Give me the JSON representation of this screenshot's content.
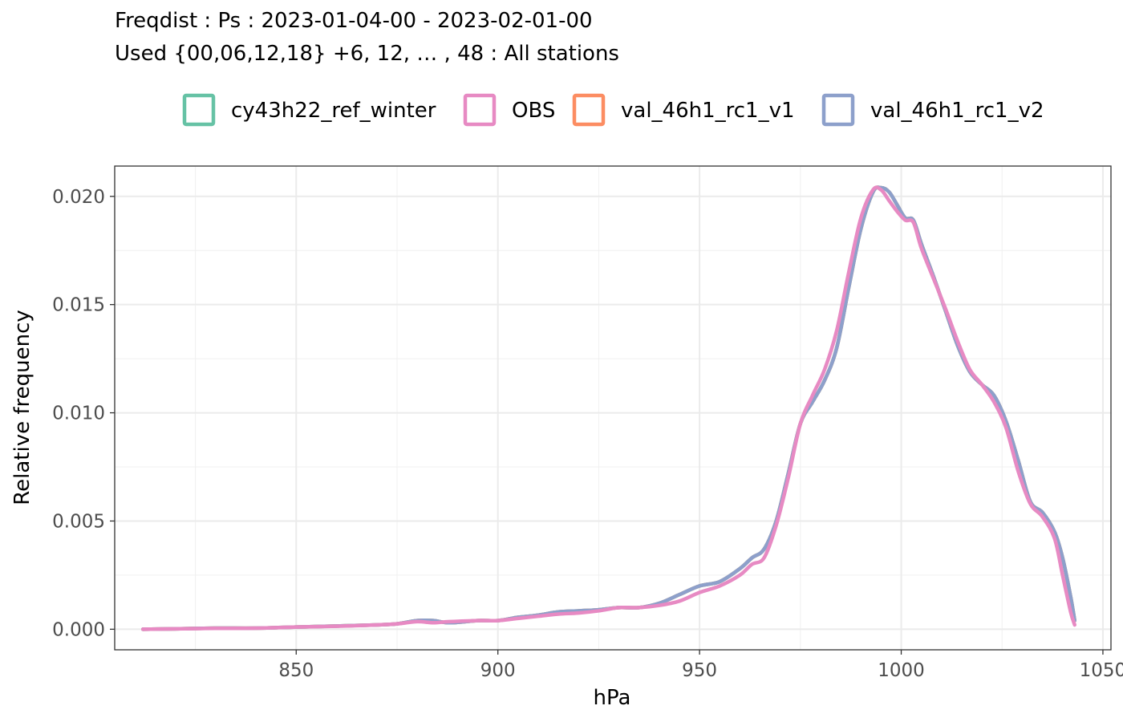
{
  "chart_data": {
    "type": "line",
    "title": "Freqdist : Ps : 2023-01-04-00 - 2023-02-01-00",
    "subtitle": "Used {00,06,12,18} +6, 12, … , 48 : All stations",
    "xlabel": "hPa",
    "ylabel": "Relative frequency",
    "xlim": [
      805,
      1052
    ],
    "ylim": [
      -0.00095,
      0.0214
    ],
    "x_ticks": [
      850,
      900,
      950,
      1000,
      1050
    ],
    "x_tick_labels": [
      "850",
      "900",
      "950",
      "1000",
      "1050"
    ],
    "y_ticks": [
      0.0,
      0.005,
      0.01,
      0.015,
      0.02
    ],
    "y_tick_labels": [
      "0.000",
      "0.005",
      "0.010",
      "0.015",
      "0.020"
    ],
    "grid": true,
    "legend_position": "top",
    "series": [
      {
        "name": "cy43h22_ref_winter",
        "color": "#66c2a5",
        "x": [
          812,
          820,
          830,
          840,
          850,
          860,
          870,
          875,
          880,
          884,
          888,
          895,
          900,
          905,
          910,
          915,
          920,
          925,
          930,
          935,
          940,
          945,
          950,
          955,
          960,
          963,
          966,
          969,
          972,
          975,
          978,
          981,
          984,
          987,
          990,
          993,
          995,
          997,
          999,
          1001,
          1003,
          1005,
          1008,
          1011,
          1014,
          1017,
          1020,
          1023,
          1026,
          1029,
          1032,
          1035,
          1038,
          1040,
          1042,
          1043
        ],
        "values": [
          0.0,
          2e-05,
          5e-05,
          5e-05,
          0.0001,
          0.00015,
          0.0002,
          0.00025,
          0.0004,
          0.0004,
          0.0003,
          0.0004,
          0.0004,
          0.00055,
          0.00065,
          0.0008,
          0.00085,
          0.0009,
          0.001,
          0.001,
          0.0012,
          0.0016,
          0.002,
          0.0022,
          0.0028,
          0.0033,
          0.0037,
          0.005,
          0.0072,
          0.0095,
          0.0105,
          0.0115,
          0.013,
          0.0158,
          0.0185,
          0.0202,
          0.0204,
          0.0202,
          0.0196,
          0.019,
          0.0189,
          0.0178,
          0.0163,
          0.0147,
          0.0131,
          0.0119,
          0.0113,
          0.0108,
          0.0096,
          0.0078,
          0.0059,
          0.0054,
          0.0045,
          0.0033,
          0.0015,
          0.0004
        ]
      },
      {
        "name": "OBS",
        "color": "#e78ac3",
        "x": [
          812,
          820,
          830,
          840,
          850,
          860,
          870,
          875,
          880,
          884,
          888,
          895,
          900,
          905,
          910,
          915,
          920,
          925,
          930,
          935,
          940,
          945,
          950,
          955,
          960,
          963,
          966,
          969,
          972,
          975,
          978,
          981,
          984,
          987,
          990,
          993,
          995,
          997,
          999,
          1001,
          1003,
          1005,
          1008,
          1011,
          1014,
          1017,
          1020,
          1023,
          1026,
          1029,
          1032,
          1035,
          1038,
          1040,
          1042,
          1043
        ],
        "values": [
          0.0,
          2e-05,
          4e-05,
          5e-05,
          0.0001,
          0.00014,
          0.0002,
          0.00025,
          0.00035,
          0.0003,
          0.00035,
          0.0004,
          0.0004,
          0.0005,
          0.0006,
          0.0007,
          0.00075,
          0.00085,
          0.001,
          0.001,
          0.0011,
          0.0013,
          0.0017,
          0.002,
          0.0025,
          0.003,
          0.0033,
          0.0048,
          0.007,
          0.0095,
          0.0108,
          0.012,
          0.0138,
          0.0165,
          0.019,
          0.0203,
          0.0203,
          0.0198,
          0.0193,
          0.0189,
          0.0188,
          0.0176,
          0.0162,
          0.0148,
          0.0133,
          0.012,
          0.0113,
          0.0105,
          0.0093,
          0.0073,
          0.0058,
          0.0052,
          0.0042,
          0.0025,
          0.0008,
          0.0002
        ]
      },
      {
        "name": "val_46h1_rc1_v1",
        "color": "#fc8d62",
        "x": [
          812,
          820,
          830,
          840,
          850,
          860,
          870,
          875,
          880,
          884,
          888,
          895,
          900,
          905,
          910,
          915,
          920,
          925,
          930,
          935,
          940,
          945,
          950,
          955,
          960,
          963,
          966,
          969,
          972,
          975,
          978,
          981,
          984,
          987,
          990,
          993,
          995,
          997,
          999,
          1001,
          1003,
          1005,
          1008,
          1011,
          1014,
          1017,
          1020,
          1023,
          1026,
          1029,
          1032,
          1035,
          1038,
          1040,
          1042,
          1043
        ],
        "values": [
          0.0,
          2e-05,
          5e-05,
          5e-05,
          0.0001,
          0.00015,
          0.0002,
          0.00025,
          0.0004,
          0.0004,
          0.0003,
          0.0004,
          0.0004,
          0.00055,
          0.00065,
          0.0008,
          0.00085,
          0.0009,
          0.001,
          0.001,
          0.0012,
          0.0016,
          0.002,
          0.0022,
          0.0028,
          0.0033,
          0.0037,
          0.005,
          0.0072,
          0.0095,
          0.0105,
          0.0115,
          0.013,
          0.0158,
          0.0185,
          0.0202,
          0.0204,
          0.0202,
          0.0196,
          0.019,
          0.0189,
          0.0178,
          0.0163,
          0.0147,
          0.0131,
          0.0119,
          0.0113,
          0.0108,
          0.0096,
          0.0078,
          0.0059,
          0.0054,
          0.0045,
          0.0033,
          0.0015,
          0.0004
        ]
      },
      {
        "name": "val_46h1_rc1_v2",
        "color": "#8da0cb",
        "x": [
          812,
          820,
          830,
          840,
          850,
          860,
          870,
          875,
          880,
          884,
          888,
          895,
          900,
          905,
          910,
          915,
          920,
          925,
          930,
          935,
          940,
          945,
          950,
          955,
          960,
          963,
          966,
          969,
          972,
          975,
          978,
          981,
          984,
          987,
          990,
          993,
          995,
          997,
          999,
          1001,
          1003,
          1005,
          1008,
          1011,
          1014,
          1017,
          1020,
          1023,
          1026,
          1029,
          1032,
          1035,
          1038,
          1040,
          1042,
          1043
        ],
        "values": [
          0.0,
          2e-05,
          5e-05,
          5e-05,
          0.0001,
          0.00015,
          0.0002,
          0.00025,
          0.0004,
          0.0004,
          0.0003,
          0.0004,
          0.0004,
          0.00055,
          0.00065,
          0.0008,
          0.00085,
          0.0009,
          0.001,
          0.001,
          0.0012,
          0.0016,
          0.002,
          0.0022,
          0.0028,
          0.0033,
          0.0037,
          0.005,
          0.0072,
          0.0095,
          0.0105,
          0.0115,
          0.013,
          0.0158,
          0.0185,
          0.0202,
          0.0204,
          0.0202,
          0.0196,
          0.019,
          0.0189,
          0.0178,
          0.0163,
          0.0147,
          0.0131,
          0.0119,
          0.0113,
          0.0108,
          0.0096,
          0.0078,
          0.0059,
          0.0054,
          0.0045,
          0.0033,
          0.0015,
          0.0004
        ]
      }
    ]
  }
}
